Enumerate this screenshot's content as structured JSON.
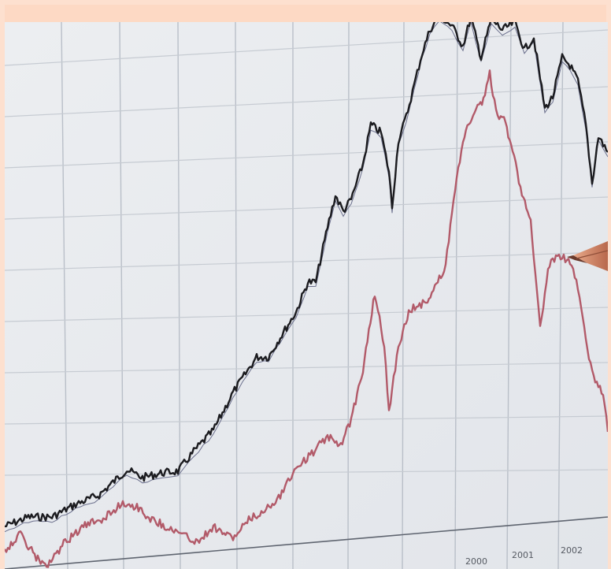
{
  "photo": {
    "description_icon": "stock-chart-photo",
    "year_labels": [
      "2000",
      "2001",
      "2002"
    ],
    "colors": {
      "background": "#e9ebee",
      "grid": "#b9bfc8",
      "upper_series": "#1b1b1f",
      "lower_series": "#b25a69",
      "pen": "#c97a5e",
      "frame": "#fde0cf"
    }
  }
}
